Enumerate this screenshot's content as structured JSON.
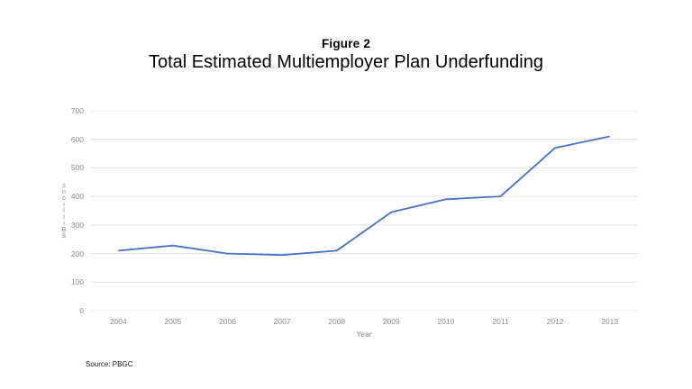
{
  "chart_data": {
    "type": "line",
    "title": "Figure 2",
    "subtitle": "Total Estimated Multiemployer Plan Underfunding",
    "categories": [
      "2004",
      "2005",
      "2006",
      "2007",
      "2008",
      "2009",
      "2010",
      "2011",
      "2012",
      "2013"
    ],
    "values": [
      210,
      228,
      200,
      195,
      210,
      345,
      390,
      400,
      570,
      610
    ],
    "xlabel": "Year",
    "ylabel": "$ Billions",
    "ylim": [
      0,
      700
    ],
    "yticks": [
      0,
      100,
      200,
      300,
      400,
      500,
      600,
      700
    ],
    "grid": "horizontal",
    "legend": false,
    "line_color": "#4472C4",
    "gridline_color": "#E3E3E3"
  },
  "source_note": "Source: PBGC"
}
